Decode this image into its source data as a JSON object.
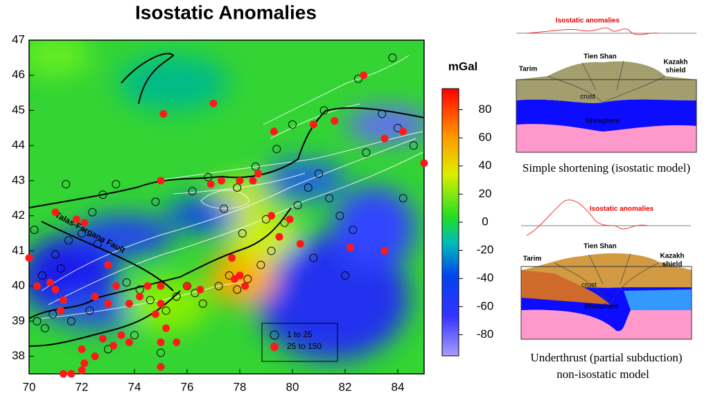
{
  "map": {
    "title": "Isostatic Anomalies",
    "xlim": [
      70,
      85
    ],
    "xticks": [
      70,
      72,
      74,
      76,
      78,
      80,
      82,
      84
    ],
    "ylim": [
      37.5,
      47
    ],
    "yticks": [
      38,
      39,
      40,
      41,
      42,
      43,
      44,
      45,
      46,
      47
    ],
    "fault_label": "Talas-Fergana Fault",
    "colorbar": {
      "title": "mGal",
      "lim": [
        -95,
        95
      ],
      "ticks": [
        -80,
        -60,
        -40,
        -20,
        0,
        20,
        40,
        60,
        80
      ]
    },
    "events": [
      {
        "label": "1 to 25",
        "color": "#000000",
        "lon": [
          70.3,
          70.6,
          70.9,
          71.2,
          71.5,
          72.0,
          72.4,
          72.8,
          73.3,
          73.7,
          74.2,
          74.6,
          75.2,
          75.6,
          76.0,
          76.3,
          76.6,
          77.2,
          77.6,
          77.9,
          78.3,
          78.8,
          79.2,
          79.7,
          80.2,
          80.6,
          81.0,
          81.4,
          81.8,
          82.3,
          82.8,
          83.4,
          84.0,
          84.6,
          70.5,
          71.0,
          71.6,
          72.3,
          73.0,
          74.0,
          75.0,
          76.8,
          77.9,
          78.6,
          79.4,
          80.0,
          81.2,
          82.5,
          83.8,
          70.2,
          71.4,
          72.6,
          74.8,
          76.2,
          77.4,
          78.1,
          79.0,
          80.8,
          82.0,
          84.2
        ],
        "lat": [
          39.0,
          38.8,
          39.2,
          40.5,
          41.3,
          41.5,
          42.1,
          42.6,
          42.9,
          40.1,
          39.9,
          39.6,
          39.3,
          39.7,
          40.0,
          39.8,
          39.5,
          40.0,
          40.3,
          39.9,
          40.2,
          40.6,
          41.0,
          41.8,
          42.3,
          42.8,
          43.2,
          42.5,
          42.0,
          41.6,
          43.8,
          44.9,
          44.5,
          44.0,
          40.3,
          40.9,
          39.0,
          39.3,
          38.2,
          38.6,
          38.1,
          43.1,
          42.8,
          43.4,
          43.9,
          44.6,
          45.0,
          45.9,
          46.5,
          41.6,
          42.9,
          41.2,
          42.4,
          42.7,
          42.2,
          41.5,
          41.9,
          40.8,
          40.3,
          42.5
        ]
      },
      {
        "label": "25 to 150",
        "color": "#ff1a1a",
        "lon": [
          75.1,
          77.0,
          82.7,
          79.3,
          80.8,
          81.6,
          83.5,
          84.2,
          85.0,
          75.0,
          76.9,
          77.3,
          78.0,
          78.5,
          78.7,
          79.2,
          79.9,
          79.5,
          80.3,
          82.2,
          83.5,
          71.0,
          71.8,
          72.1,
          70.0,
          73.0,
          77.7,
          78.0,
          77.8,
          78.2,
          76.0,
          75.0,
          74.5,
          73.3,
          70.8,
          71.3,
          71.2,
          72.5,
          73.0,
          73.8,
          74.2,
          75.0,
          74.8,
          73.5,
          73.8,
          73.2,
          72.5,
          72.0,
          72.8,
          75.0,
          75.6,
          75.2,
          71.6,
          71.3,
          72.0,
          75.0,
          72.1,
          70.3,
          71.0,
          76.5
        ],
        "lat": [
          44.9,
          45.2,
          46.0,
          44.4,
          44.6,
          44.7,
          44.2,
          44.4,
          43.5,
          43.0,
          42.9,
          43.0,
          43.0,
          43.0,
          43.2,
          42.0,
          41.9,
          41.4,
          41.2,
          41.1,
          41.0,
          42.1,
          41.9,
          41.8,
          40.8,
          40.6,
          40.8,
          40.3,
          40.2,
          40.0,
          40.0,
          40.0,
          40.0,
          40.0,
          40.1,
          39.6,
          39.3,
          39.7,
          39.5,
          39.5,
          39.7,
          39.5,
          39.2,
          38.6,
          38.4,
          38.3,
          38.0,
          38.2,
          38.5,
          38.4,
          38.4,
          38.8,
          37.5,
          37.5,
          37.6,
          37.7,
          37.8,
          40.0,
          39.9,
          39.9
        ]
      }
    ]
  },
  "models": [
    {
      "curve_title": "Isostatic anomalies",
      "left": "Tarim",
      "middle": "Tien Shan",
      "right": [
        "Kazakh",
        "shield"
      ],
      "crust": "crust",
      "mantle": "lithosphere",
      "caption": [
        "Simple shortening (isostatic model)"
      ]
    },
    {
      "curve_title": "Isostatic anomalies",
      "left": "Tarim",
      "middle": "Tien Shan",
      "right": [
        "Kazakh",
        "shield"
      ],
      "crust": "crust",
      "mantle": "lithosphere",
      "caption": [
        "Underthrust (partial subduction)",
        "non-isostatic model"
      ]
    }
  ]
}
